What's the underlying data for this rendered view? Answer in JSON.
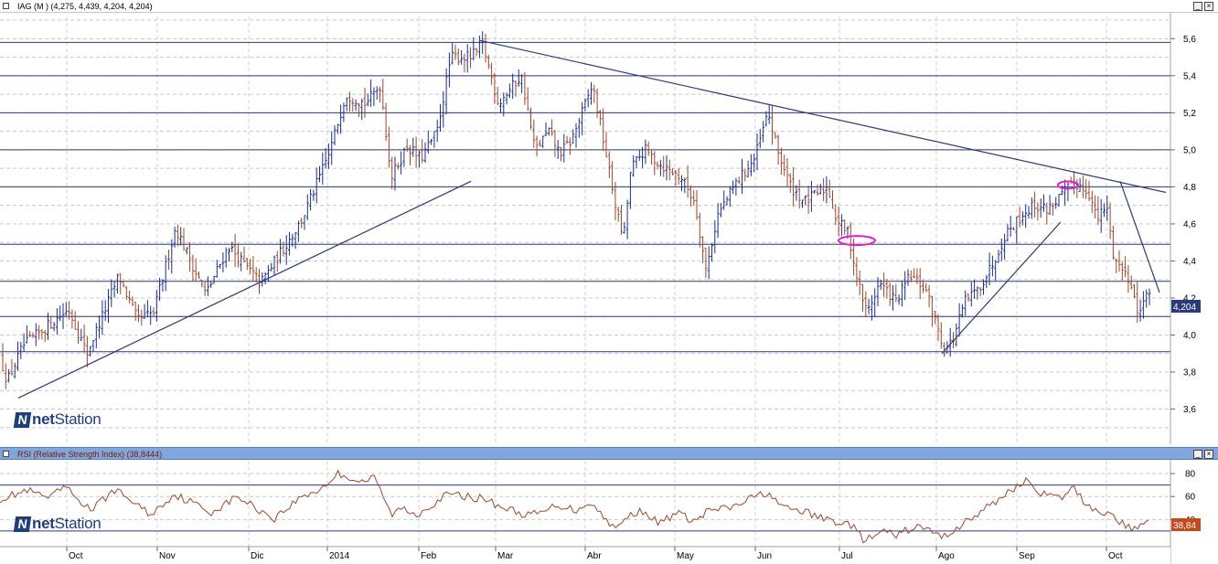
{
  "main_panel": {
    "header_text": "IAG (M ) (4,275, 4,439, 4,204, 4,204)",
    "last_price_label": "4,204",
    "logo_prefix": "net",
    "logo_suffix": "Station"
  },
  "rsi_panel": {
    "header_text": "RSI (Relative Strength Index) (38,8444)",
    "last_value_label": "38,84",
    "logo_prefix": "net",
    "logo_suffix": "Station"
  },
  "window_controls": {
    "minimize": "_",
    "maximize": "□",
    "close": "×"
  },
  "colors": {
    "bar_up": "#1c2f8a",
    "bar_down": "#a0462a",
    "trendline": "#2b3a7a",
    "rsi_line": "#a0462a",
    "highlight": "#e020d0",
    "rsi_header": "#7fa7de"
  },
  "chart_data": [
    {
      "type": "bar",
      "subtype": "ohlc",
      "symbol": "IAG",
      "x_tick_labels": [
        "Oct",
        "Nov",
        "Dic",
        "2014",
        "Feb",
        "Mar",
        "Abr",
        "May",
        "Jun",
        "Jul",
        "Ago",
        "Sep",
        "Oct"
      ],
      "y_ticks": [
        "5,6",
        "5,4",
        "5,2",
        "5,0",
        "4,8",
        "4,6",
        "4,4",
        "4,2",
        "4,0",
        "3,8",
        "3,6"
      ],
      "ylim": [
        3.43,
        5.72
      ],
      "horizontal_levels": [
        5.58,
        5.4,
        5.2,
        5.0,
        4.8,
        4.49,
        4.29,
        4.1,
        3.91
      ],
      "anchors": [
        [
          0,
          3.88
        ],
        [
          8,
          3.75
        ],
        [
          25,
          3.94
        ],
        [
          55,
          4.06
        ],
        [
          75,
          4.14
        ],
        [
          95,
          3.9
        ],
        [
          130,
          4.32
        ],
        [
          150,
          4.08
        ],
        [
          168,
          4.12
        ],
        [
          192,
          4.58
        ],
        [
          225,
          4.22
        ],
        [
          250,
          4.48
        ],
        [
          285,
          4.28
        ],
        [
          330,
          4.62
        ],
        [
          360,
          4.98
        ],
        [
          378,
          5.3
        ],
        [
          400,
          5.25
        ],
        [
          416,
          5.35
        ],
        [
          428,
          4.85
        ],
        [
          445,
          5.02
        ],
        [
          460,
          4.95
        ],
        [
          478,
          5.1
        ],
        [
          493,
          5.5
        ],
        [
          515,
          5.5
        ],
        [
          528,
          5.57
        ],
        [
          545,
          5.25
        ],
        [
          570,
          5.4
        ],
        [
          585,
          5.0
        ],
        [
          600,
          5.1
        ],
        [
          612,
          4.98
        ],
        [
          625,
          5.05
        ],
        [
          648,
          5.35
        ],
        [
          660,
          5.05
        ],
        [
          675,
          4.65
        ],
        [
          682,
          4.52
        ],
        [
          690,
          4.9
        ],
        [
          705,
          5.0
        ],
        [
          722,
          4.92
        ],
        [
          745,
          4.85
        ],
        [
          760,
          4.72
        ],
        [
          772,
          4.35
        ],
        [
          785,
          4.65
        ],
        [
          805,
          4.82
        ],
        [
          825,
          4.95
        ],
        [
          840,
          5.2
        ],
        [
          850,
          5.0
        ],
        [
          865,
          4.8
        ],
        [
          880,
          4.72
        ],
        [
          905,
          4.8
        ],
        [
          915,
          4.62
        ],
        [
          928,
          4.55
        ],
        [
          936,
          4.33
        ],
        [
          948,
          4.12
        ],
        [
          962,
          4.28
        ],
        [
          980,
          4.18
        ],
        [
          995,
          4.32
        ],
        [
          1012,
          4.25
        ],
        [
          1025,
          4.05
        ],
        [
          1032,
          3.92
        ],
        [
          1042,
          3.97
        ],
        [
          1055,
          4.18
        ],
        [
          1070,
          4.25
        ],
        [
          1085,
          4.38
        ],
        [
          1100,
          4.55
        ],
        [
          1118,
          4.65
        ],
        [
          1130,
          4.7
        ],
        [
          1145,
          4.68
        ],
        [
          1160,
          4.75
        ],
        [
          1175,
          4.82
        ],
        [
          1190,
          4.78
        ],
        [
          1200,
          4.62
        ],
        [
          1210,
          4.7
        ],
        [
          1218,
          4.42
        ],
        [
          1228,
          4.35
        ],
        [
          1238,
          4.28
        ],
        [
          1245,
          4.08
        ],
        [
          1252,
          4.25
        ],
        [
          1257,
          4.2
        ]
      ],
      "trendlines": [
        {
          "x1": 20,
          "y1": 3.66,
          "x2": 515,
          "y2": 4.83
        },
        {
          "x1": 525,
          "y1": 5.59,
          "x2": 1275,
          "y2": 4.77
        },
        {
          "x1": 1030,
          "y1": 3.9,
          "x2": 1160,
          "y2": 4.61
        },
        {
          "x1": 1225,
          "y1": 4.83,
          "x2": 1268,
          "y2": 4.23
        }
      ],
      "highlights": [
        {
          "x": 937,
          "y": 4.51
        },
        {
          "x": 1168,
          "y": 4.81
        }
      ],
      "last_value": 4.204
    },
    {
      "type": "line",
      "series_name": "RSI",
      "y_ticks": [
        "80",
        "60",
        "40"
      ],
      "ylim": [
        18,
        88
      ],
      "reference_levels": [
        70,
        30
      ],
      "anchors": [
        [
          0,
          58
        ],
        [
          30,
          65
        ],
        [
          55,
          58
        ],
        [
          70,
          69
        ],
        [
          85,
          58
        ],
        [
          100,
          48
        ],
        [
          125,
          66
        ],
        [
          145,
          56
        ],
        [
          165,
          44
        ],
        [
          190,
          62
        ],
        [
          210,
          55
        ],
        [
          230,
          46
        ],
        [
          260,
          60
        ],
        [
          280,
          50
        ],
        [
          300,
          41
        ],
        [
          330,
          60
        ],
        [
          350,
          66
        ],
        [
          370,
          80
        ],
        [
          395,
          73
        ],
        [
          410,
          76
        ],
        [
          428,
          44
        ],
        [
          440,
          50
        ],
        [
          455,
          44
        ],
        [
          470,
          52
        ],
        [
          490,
          62
        ],
        [
          510,
          60
        ],
        [
          530,
          58
        ],
        [
          545,
          52
        ],
        [
          560,
          48
        ],
        [
          575,
          44
        ],
        [
          590,
          45
        ],
        [
          610,
          53
        ],
        [
          630,
          48
        ],
        [
          645,
          56
        ],
        [
          660,
          42
        ],
        [
          675,
          32
        ],
        [
          690,
          45
        ],
        [
          705,
          48
        ],
        [
          720,
          36
        ],
        [
          740,
          46
        ],
        [
          760,
          38
        ],
        [
          775,
          48
        ],
        [
          800,
          50
        ],
        [
          820,
          58
        ],
        [
          840,
          64
        ],
        [
          855,
          50
        ],
        [
          875,
          48
        ],
        [
          895,
          42
        ],
        [
          915,
          38
        ],
        [
          930,
          36
        ],
        [
          945,
          22
        ],
        [
          955,
          24
        ],
        [
          965,
          30
        ],
        [
          980,
          26
        ],
        [
          1000,
          34
        ],
        [
          1020,
          30
        ],
        [
          1030,
          24
        ],
        [
          1045,
          32
        ],
        [
          1060,
          40
        ],
        [
          1075,
          48
        ],
        [
          1090,
          56
        ],
        [
          1105,
          66
        ],
        [
          1125,
          74
        ],
        [
          1140,
          62
        ],
        [
          1160,
          58
        ],
        [
          1175,
          68
        ],
        [
          1185,
          55
        ],
        [
          1200,
          48
        ],
        [
          1215,
          44
        ],
        [
          1225,
          38
        ],
        [
          1240,
          30
        ],
        [
          1252,
          40
        ],
        [
          1256,
          38.84
        ]
      ],
      "last_value": 38.84
    }
  ]
}
